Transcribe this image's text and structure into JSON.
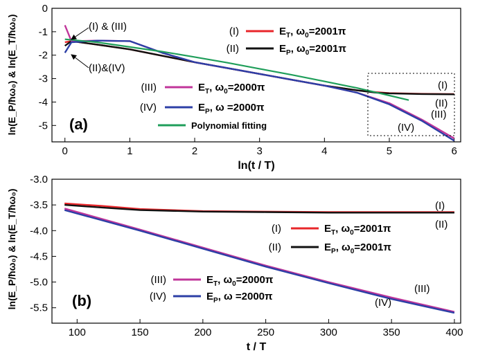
{
  "chart_data": [
    {
      "type": "line",
      "panel_label": "(a)",
      "xlabel": "ln(t / T)",
      "ylabel": "ln(E_P/ħω₀) & ln(E_T/ħω₀)",
      "xlim": [
        -0.2,
        6.1
      ],
      "ylim": [
        -5.7,
        0
      ],
      "xticks": [
        0,
        1,
        2,
        3,
        4,
        5,
        6
      ],
      "yticks": [
        0,
        -1,
        -2,
        -3,
        -4,
        -5
      ],
      "grid": false,
      "legend_position": "inside, right half",
      "series": [
        {
          "id": "I",
          "color": "#e8262a",
          "x": [
            0,
            0.1,
            0.5,
            1,
            2,
            3,
            3.5,
            4,
            4.5,
            4.8,
            5,
            5.5,
            6
          ],
          "y": [
            -1.45,
            -1.4,
            -1.55,
            -1.75,
            -2.3,
            -2.8,
            -3.05,
            -3.3,
            -3.5,
            -3.58,
            -3.62,
            -3.65,
            -3.66
          ]
        },
        {
          "id": "II",
          "color": "#111111",
          "x": [
            0,
            0.1,
            0.5,
            1,
            2,
            3,
            3.5,
            4,
            4.5,
            4.8,
            5,
            5.5,
            6
          ],
          "y": [
            -1.6,
            -1.4,
            -1.55,
            -1.75,
            -2.3,
            -2.8,
            -3.05,
            -3.3,
            -3.5,
            -3.6,
            -3.63,
            -3.66,
            -3.67
          ]
        },
        {
          "id": "III",
          "color": "#c0359a",
          "x": [
            0,
            0.1,
            0.5,
            1,
            1.5,
            2,
            2.5,
            3,
            3.5,
            4,
            4.5,
            5,
            5.5,
            6
          ],
          "y": [
            -0.72,
            -1.4,
            -1.38,
            -1.4,
            -1.9,
            -2.3,
            -2.55,
            -2.8,
            -3.05,
            -3.3,
            -3.6,
            -4.05,
            -4.75,
            -5.55
          ]
        },
        {
          "id": "IV",
          "color": "#2c3fa6",
          "x": [
            0,
            0.1,
            0.5,
            1,
            1.5,
            2,
            2.5,
            3,
            3.5,
            4,
            4.5,
            5,
            5.5,
            6
          ],
          "y": [
            -1.9,
            -1.45,
            -1.38,
            -1.4,
            -1.9,
            -2.3,
            -2.55,
            -2.8,
            -3.05,
            -3.3,
            -3.6,
            -4.1,
            -4.8,
            -5.65
          ]
        },
        {
          "id": "fit",
          "color": "#1f9e5a",
          "x": [
            0,
            0.5,
            1,
            1.5,
            2,
            2.5,
            3,
            3.5,
            4,
            4.5,
            5,
            5.3
          ],
          "y": [
            -1.32,
            -1.45,
            -1.65,
            -1.85,
            -2.08,
            -2.32,
            -2.58,
            -2.84,
            -3.12,
            -3.4,
            -3.72,
            -3.92
          ]
        }
      ],
      "legend": [
        {
          "num": "(I)",
          "sym": "E",
          "sub": "T",
          "rest": ", ω",
          "sub2": "0",
          "val": "=2001π",
          "color": "#e8262a"
        },
        {
          "num": "(II)",
          "sym": "E",
          "sub": "P",
          "rest": ", ω",
          "sub2": "0",
          "val": "=2001π",
          "color": "#111111"
        },
        {
          "num": "(III)",
          "sym": "E",
          "sub": "T",
          "rest": ", ω",
          "sub2": "0",
          "val": "=2000π",
          "color": "#c0359a"
        },
        {
          "num": "(IV)",
          "sym": "E",
          "sub": "P",
          "rest": ", ω",
          "sub2": "",
          "val": " =2000π",
          "color": "#2c3fa6"
        },
        {
          "num": "",
          "text": "Polynomial fitting",
          "color": "#1f9e5a"
        }
      ],
      "annotations": [
        "(I) & (III)",
        "(II)&(IV)",
        "(I)",
        "(II)",
        "(III)",
        "(IV)"
      ]
    },
    {
      "type": "line",
      "panel_label": "(b)",
      "xlabel": "t / T",
      "ylabel": "ln(E_P/ħω₀) & ln(E_T/ħω₀)",
      "xlim": [
        80,
        405
      ],
      "ylim": [
        -5.8,
        -3.0
      ],
      "xticks": [
        100,
        150,
        200,
        250,
        300,
        350,
        400
      ],
      "yticks": [
        -3.0,
        -3.5,
        -4.0,
        -4.5,
        -5.0,
        -5.5
      ],
      "ytick_labels": [
        "-3.0",
        "-3.5",
        "-4.0",
        "-4.5",
        "-5.0",
        "-5.5"
      ],
      "grid": false,
      "legend_position": "inside, lower area",
      "series": [
        {
          "id": "I",
          "color": "#e8262a",
          "x": [
            90,
            120,
            150,
            200,
            250,
            300,
            350,
            400
          ],
          "y": [
            -3.47,
            -3.52,
            -3.58,
            -3.62,
            -3.63,
            -3.64,
            -3.64,
            -3.64
          ]
        },
        {
          "id": "II",
          "color": "#111111",
          "x": [
            90,
            120,
            150,
            200,
            250,
            300,
            350,
            400
          ],
          "y": [
            -3.5,
            -3.55,
            -3.6,
            -3.63,
            -3.64,
            -3.65,
            -3.65,
            -3.65
          ]
        },
        {
          "id": "III",
          "color": "#c0359a",
          "x": [
            90,
            150,
            200,
            250,
            300,
            350,
            400
          ],
          "y": [
            -3.57,
            -3.98,
            -4.33,
            -4.68,
            -5.0,
            -5.3,
            -5.58
          ]
        },
        {
          "id": "IV",
          "color": "#2c3fa6",
          "x": [
            90,
            150,
            200,
            250,
            300,
            350,
            400
          ],
          "y": [
            -3.6,
            -4.0,
            -4.35,
            -4.7,
            -5.02,
            -5.33,
            -5.6
          ]
        }
      ],
      "legend": [
        {
          "num": "(I)",
          "sym": "E",
          "sub": "T",
          "rest": ", ω",
          "sub2": "0",
          "val": "=2001π",
          "color": "#e8262a"
        },
        {
          "num": "(II)",
          "sym": "E",
          "sub": "P",
          "rest": ", ω",
          "sub2": "0",
          "val": "=2001π",
          "color": "#111111"
        },
        {
          "num": "(III)",
          "sym": "E",
          "sub": "T",
          "rest": ", ω",
          "sub2": "0",
          "val": "=2000π",
          "color": "#c0359a"
        },
        {
          "num": "(IV)",
          "sym": "E",
          "sub": "P",
          "rest": ", ω",
          "sub2": "",
          "val": " =2000π",
          "color": "#2c3fa6"
        }
      ],
      "annotations": [
        "(I)",
        "(II)",
        "(III)",
        "(IV)"
      ]
    }
  ]
}
